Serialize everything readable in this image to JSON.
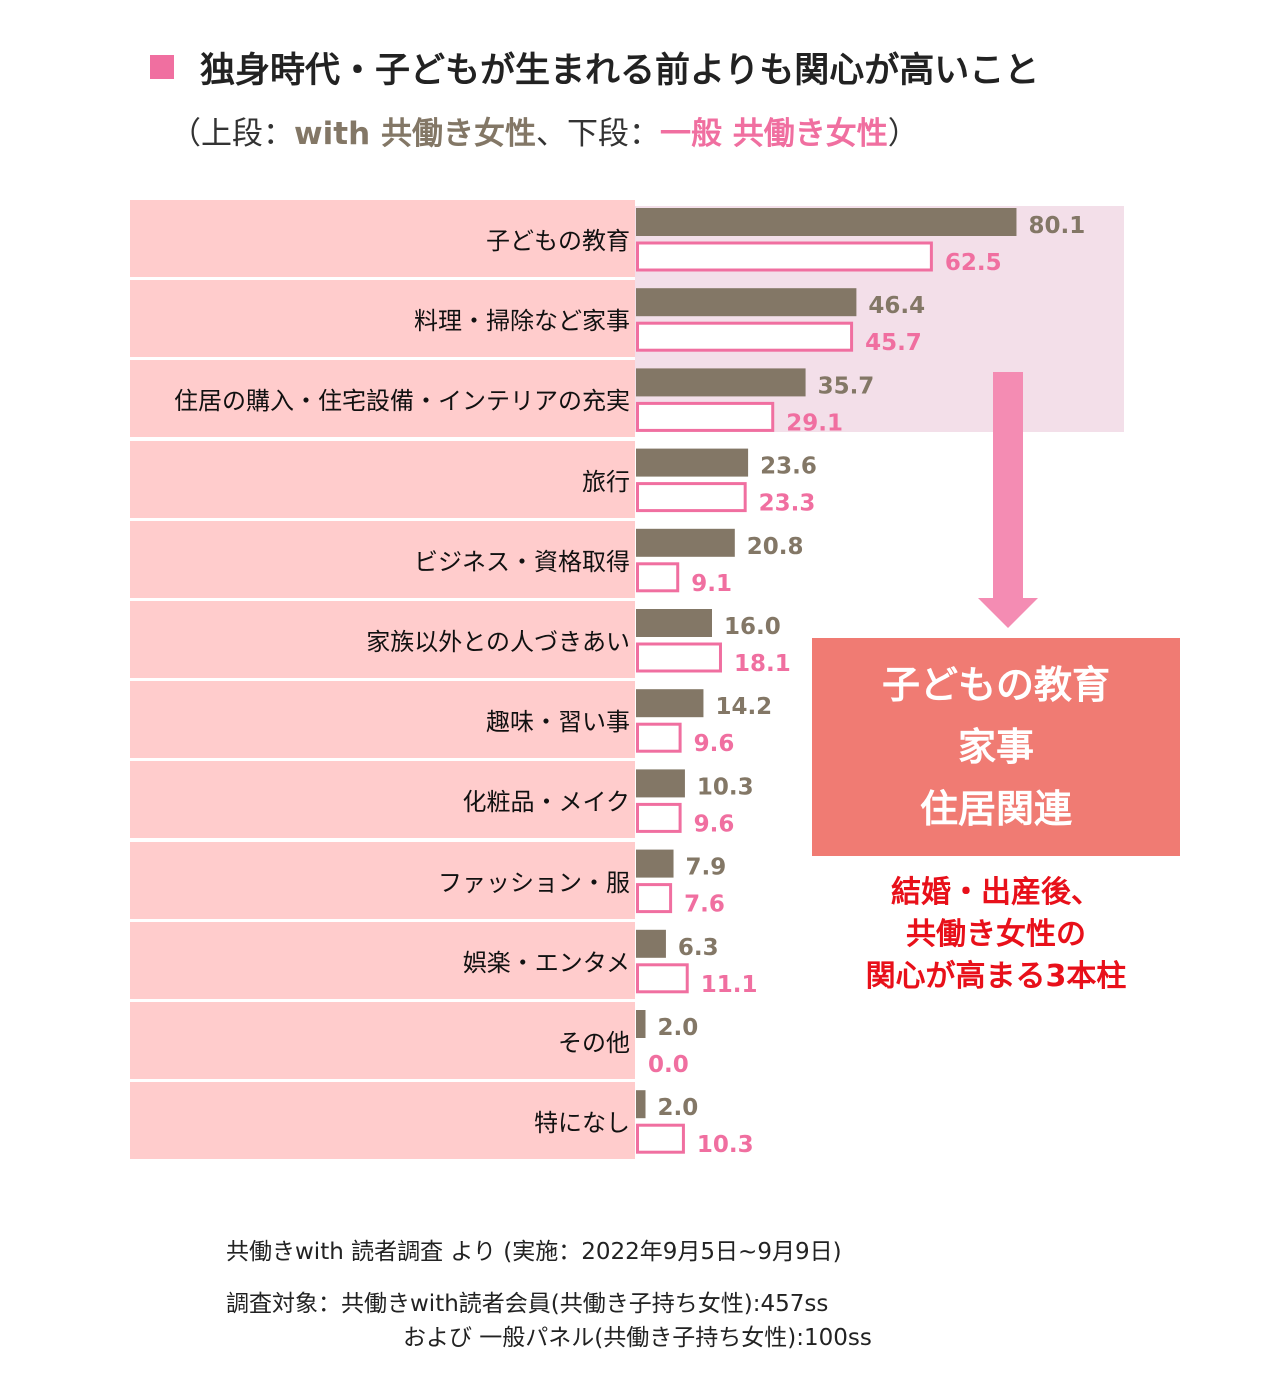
{
  "title": "独身時代・子どもが生まれる前よりも関心が高いこと",
  "subtitle": {
    "open": "（上段：",
    "with_label": "with 共働き女性",
    "middle": "、下段：",
    "general_label": "一般 共働き女性",
    "close": "）"
  },
  "colors": {
    "with_bar": "#837766",
    "general_bar": "#f06fa0",
    "band": "#ffcccc",
    "callout": "#f07b73",
    "note": "#e8101a",
    "arrow": "#f48cb3"
  },
  "chart_data": {
    "type": "bar",
    "orientation": "horizontal",
    "categories": [
      "子どもの教育",
      "料理・掃除など家事",
      "住居の購入・住宅設備・インテリアの充実",
      "旅行",
      "ビジネス・資格取得",
      "家族以外との人づきあい",
      "趣味・習い事",
      "化粧品・メイク",
      "ファッション・服",
      "娯楽・エンタメ",
      "その他",
      "特になし"
    ],
    "series": [
      {
        "name": "with 共働き女性",
        "values": [
          80.1,
          46.4,
          35.7,
          23.6,
          20.8,
          16.0,
          14.2,
          10.3,
          7.9,
          6.3,
          2.0,
          2.0
        ]
      },
      {
        "name": "一般 共働き女性",
        "values": [
          62.5,
          45.7,
          29.1,
          23.3,
          9.1,
          18.1,
          9.6,
          9.6,
          7.6,
          11.1,
          0.0,
          10.3
        ]
      }
    ],
    "value_labels": [
      [
        "80.1",
        "46.4",
        "35.7",
        "23.6",
        "20.8",
        "16.0",
        "14.2",
        "10.3",
        "7.9",
        "6.3",
        "2.0",
        "2.0"
      ],
      [
        "62.5",
        "45.7",
        "29.1",
        "23.3",
        "9.1",
        "18.1",
        "9.6",
        "9.6",
        "7.6",
        "11.1",
        "0.0",
        "10.3"
      ]
    ],
    "xlim": [
      0,
      100
    ]
  },
  "callout": {
    "lines": [
      "子どもの教育",
      "家事",
      "住居関連"
    ]
  },
  "note": {
    "lines": [
      "結婚・出産後、",
      "共働き女性の",
      "関心が高まる3本柱"
    ]
  },
  "footer": {
    "line1": "共働きwith 読者調査 より (実施：2022年9月5日~9月9日)",
    "line2": "調査対象：共働きwith読者会員(共働き子持ち女性):457ss",
    "line3": "および 一般パネル(共働き子持ち女性):100ss"
  }
}
